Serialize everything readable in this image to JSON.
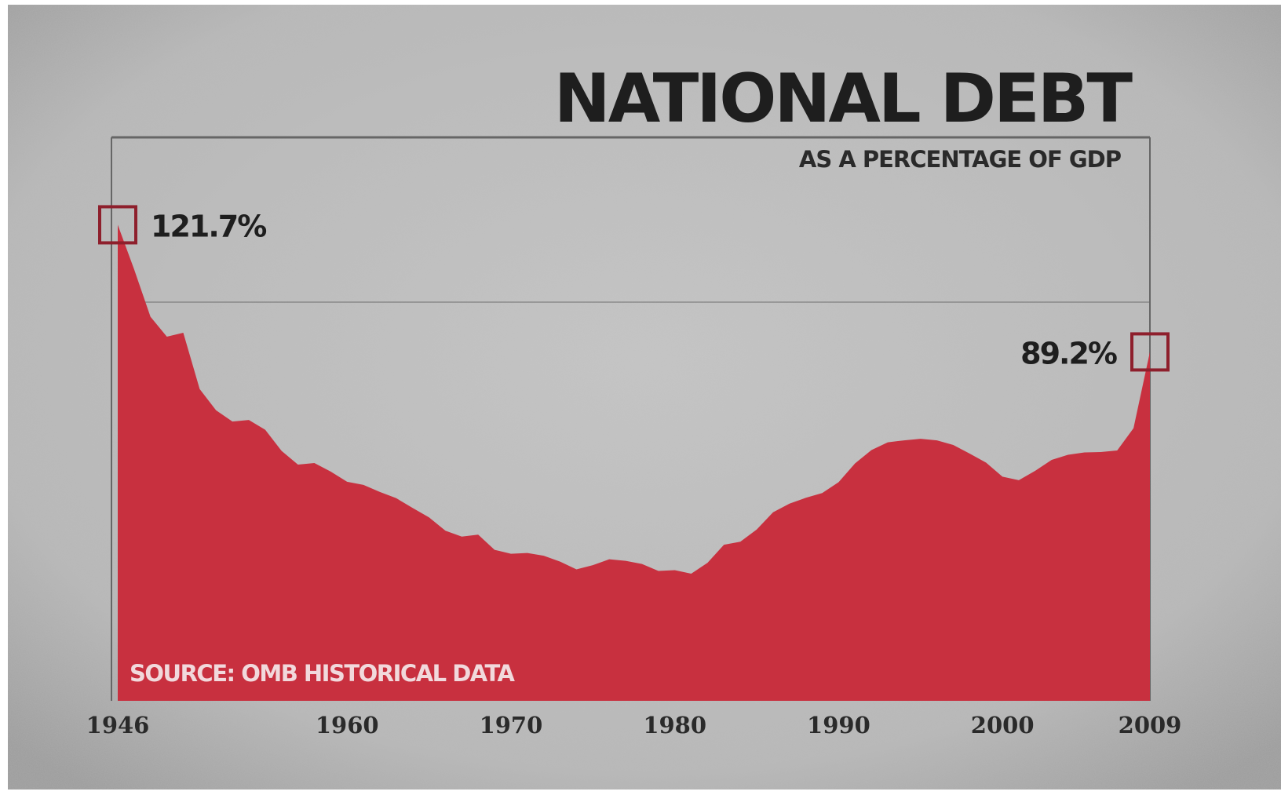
{
  "chart_data": {
    "type": "area",
    "title": "NATIONAL DEBT",
    "subtitle": "AS A PERCENTAGE OF GDP",
    "source": "SOURCE: OMB HISTORICAL DATA",
    "xlabel": "",
    "ylabel": "",
    "x_ticks": [
      "1946",
      "1960",
      "1970",
      "1980",
      "1990",
      "2000",
      "2009"
    ],
    "xlim": [
      1946,
      2009
    ],
    "ylim": [
      0,
      125
    ],
    "grid": true,
    "annotations": [
      {
        "x": 1946,
        "y": 121.7,
        "text": "121.7%"
      },
      {
        "x": 2009,
        "y": 89.2,
        "text": "89.2%"
      }
    ],
    "series": [
      {
        "x": [
          1946,
          1947,
          1948,
          1949,
          1950,
          1951,
          1952,
          1953,
          1954,
          1955,
          1956,
          1957,
          1958,
          1959,
          1960,
          1961,
          1962,
          1963,
          1964,
          1965,
          1966,
          1967,
          1968,
          1969,
          1970,
          1971,
          1972,
          1973,
          1974,
          1975,
          1976,
          1977,
          1978,
          1979,
          1980,
          1981,
          1982,
          1983,
          1984,
          1985,
          1986,
          1987,
          1988,
          1989,
          1990,
          1991,
          1992,
          1993,
          1994,
          1995,
          1996,
          1997,
          1998,
          1999,
          2000,
          2001,
          2002,
          2003,
          2004,
          2005,
          2006,
          2007,
          2008,
          2009
        ],
        "values": [
          121.7,
          110.3,
          98.2,
          93.1,
          94.1,
          79.7,
          74.3,
          71.4,
          71.8,
          69.3,
          63.9,
          60.4,
          60.8,
          58.6,
          56.0,
          55.2,
          53.4,
          51.8,
          49.3,
          46.9,
          43.5,
          42.0,
          42.5,
          38.6,
          37.6,
          37.8,
          37.1,
          35.6,
          33.6,
          34.7,
          36.2,
          35.8,
          35.0,
          33.2,
          33.4,
          32.5,
          35.3,
          39.9,
          40.7,
          43.8,
          48.2,
          50.4,
          51.9,
          53.1,
          55.9,
          60.7,
          64.1,
          66.1,
          66.6,
          67.0,
          66.6,
          65.4,
          63.2,
          60.9,
          57.3,
          56.4,
          58.8,
          61.6,
          62.9,
          63.5,
          63.6,
          64.0,
          69.7,
          89.2
        ]
      }
    ],
    "colors": {
      "area": "#c8303f",
      "background": "#b9b9b9",
      "frame": "#666666",
      "text": "#1e1e1e",
      "marker": "#8e1f2c",
      "source_text": "#f1d9dc"
    }
  }
}
